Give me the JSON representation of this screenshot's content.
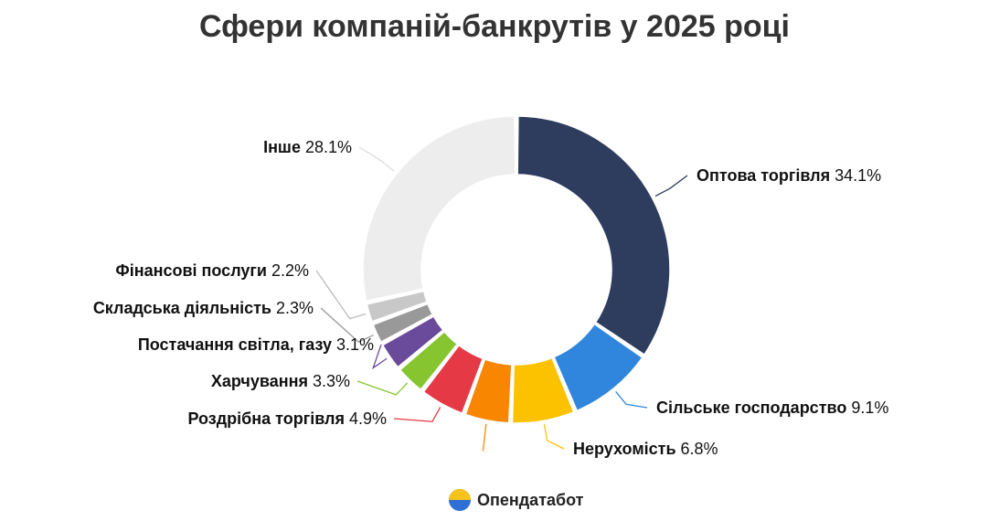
{
  "title": "Сфери компаній-банкрутів у 2025 році",
  "brand": {
    "name": "Опендатабот",
    "logo_colors": [
      "#2f6fd6",
      "#f7c31b"
    ]
  },
  "chart_data": {
    "type": "pie",
    "donut": true,
    "title": "Сфери компаній-банкрутів у 2025 році",
    "unit": "%",
    "slices": [
      {
        "label": "Оптова торгівля",
        "value": 34.1,
        "value_text": "34.1%",
        "color": "#2e3c5e"
      },
      {
        "label": "Сільське господарство",
        "value": 9.1,
        "value_text": "9.1%",
        "color": "#2f86dc"
      },
      {
        "label": "Нерухомість",
        "value": 6.8,
        "value_text": "6.8%",
        "color": "#fcc200"
      },
      {
        "label": "",
        "value": 4.9,
        "value_text": "",
        "color": "#f88600"
      },
      {
        "label": "Роздрібна торгівля",
        "value": 4.9,
        "value_text": "4.9%",
        "color": "#e63946"
      },
      {
        "label": "Харчування",
        "value": 3.3,
        "value_text": "3.3%",
        "color": "#86c430"
      },
      {
        "label": "Постачання світла, газу",
        "value": 3.1,
        "value_text": "3.1%",
        "color": "#6a4a9a"
      },
      {
        "label": "Складська діяльність",
        "value": 2.3,
        "value_text": "2.3%",
        "color": "#999999"
      },
      {
        "label": "Фінансові послуги",
        "value": 2.2,
        "value_text": "2.2%",
        "color": "#c8c8c8"
      },
      {
        "label": "Інше",
        "value": 28.1,
        "value_text": "28.1%",
        "color": "#ededed"
      }
    ]
  }
}
